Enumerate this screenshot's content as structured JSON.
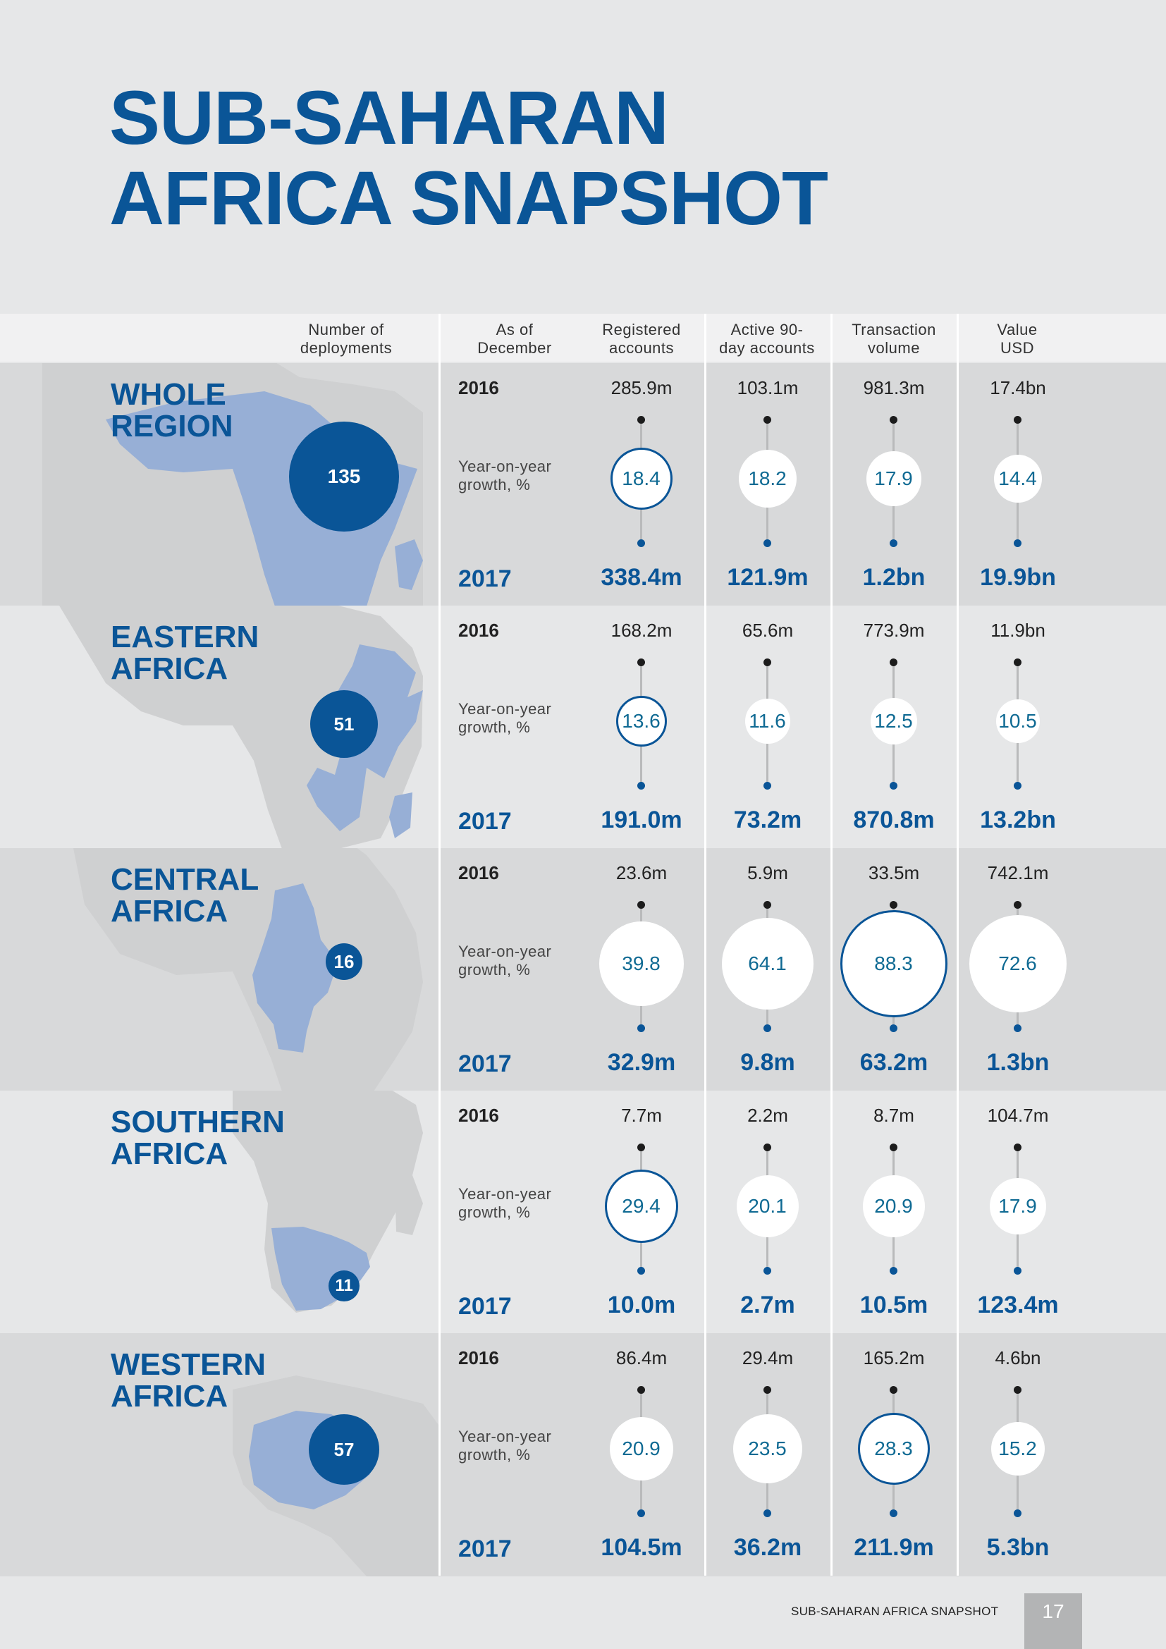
{
  "title": {
    "line1": "SUB-SAHARAN",
    "line2": "AFRICA SNAPSHOT"
  },
  "header": {
    "deployments": [
      "Number of",
      "deployments"
    ],
    "as_of": [
      "As of",
      "December"
    ],
    "registered": [
      "Registered",
      "accounts"
    ],
    "active": [
      "Active 90-",
      "day accounts"
    ],
    "volume": [
      "Transaction",
      "volume"
    ],
    "value": [
      "Value",
      "USD"
    ]
  },
  "labels": {
    "year_prev": "2016",
    "year_curr": "2017",
    "yoy": [
      "Year-on-year",
      "growth, %"
    ]
  },
  "regions": [
    {
      "name": [
        "WHOLE",
        "REGION"
      ],
      "deployments": "135",
      "metrics": [
        {
          "v2016": "285.9m",
          "growth": "18.4",
          "v2017": "338.4m"
        },
        {
          "v2016": "103.1m",
          "growth": "18.2",
          "v2017": "121.9m"
        },
        {
          "v2016": "981.3m",
          "growth": "17.9",
          "v2017": "1.2bn"
        },
        {
          "v2016": "17.4bn",
          "growth": "14.4",
          "v2017": "19.9bn"
        }
      ]
    },
    {
      "name": [
        "EASTERN",
        "AFRICA"
      ],
      "deployments": "51",
      "metrics": [
        {
          "v2016": "168.2m",
          "growth": "13.6",
          "v2017": "191.0m"
        },
        {
          "v2016": "65.6m",
          "growth": "11.6",
          "v2017": "73.2m"
        },
        {
          "v2016": "773.9m",
          "growth": "12.5",
          "v2017": "870.8m"
        },
        {
          "v2016": "11.9bn",
          "growth": "10.5",
          "v2017": "13.2bn"
        }
      ]
    },
    {
      "name": [
        "CENTRAL",
        "AFRICA"
      ],
      "deployments": "16",
      "metrics": [
        {
          "v2016": "23.6m",
          "growth": "39.8",
          "v2017": "32.9m"
        },
        {
          "v2016": "5.9m",
          "growth": "64.1",
          "v2017": "9.8m"
        },
        {
          "v2016": "33.5m",
          "growth": "88.3",
          "v2017": "63.2m"
        },
        {
          "v2016": "742.1m",
          "growth": "72.6",
          "v2017": "1.3bn"
        }
      ]
    },
    {
      "name": [
        "SOUTHERN",
        "AFRICA"
      ],
      "deployments": "11",
      "metrics": [
        {
          "v2016": "7.7m",
          "growth": "29.4",
          "v2017": "10.0m"
        },
        {
          "v2016": "2.2m",
          "growth": "20.1",
          "v2017": "2.7m"
        },
        {
          "v2016": "8.7m",
          "growth": "20.9",
          "v2017": "10.5m"
        },
        {
          "v2016": "104.7m",
          "growth": "17.9",
          "v2017": "123.4m"
        }
      ]
    },
    {
      "name": [
        "WESTERN",
        "AFRICA"
      ],
      "deployments": "57",
      "metrics": [
        {
          "v2016": "86.4m",
          "growth": "20.9",
          "v2017": "104.5m"
        },
        {
          "v2016": "29.4m",
          "growth": "23.5",
          "v2017": "36.2m"
        },
        {
          "v2016": "165.2m",
          "growth": "28.3",
          "v2017": "211.9m"
        },
        {
          "v2016": "4.6bn",
          "growth": "15.2",
          "v2017": "5.3bn"
        }
      ]
    }
  ],
  "colors": {
    "brand": "#0a5597",
    "highlight_region": "#97afd6",
    "map_base": "#cfd0d1",
    "growth_text": "#0f6a93"
  },
  "footer": {
    "label": "SUB-SAHARAN AFRICA SNAPSHOT",
    "page": "17"
  }
}
